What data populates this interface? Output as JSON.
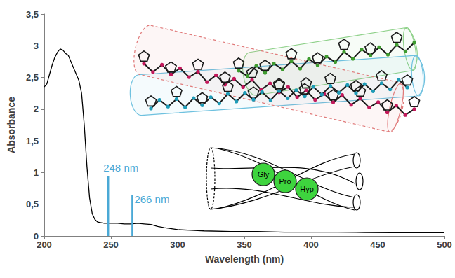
{
  "chart_data": {
    "type": "line",
    "x_label": "Wavelength (nm)",
    "y_label": "Absorbance",
    "color": "#000000",
    "x": [
      200,
      202,
      204,
      206,
      208,
      210,
      212,
      214,
      216,
      218,
      220,
      222,
      224,
      226,
      228,
      230,
      232,
      234,
      236,
      238,
      240,
      245,
      250,
      255,
      260,
      265,
      270,
      275,
      280,
      285,
      290,
      300,
      310,
      320,
      340,
      360,
      380,
      400,
      420,
      440,
      460,
      480,
      500
    ],
    "values": [
      2.35,
      2.4,
      2.55,
      2.7,
      2.82,
      2.9,
      2.95,
      2.93,
      2.88,
      2.85,
      2.75,
      2.65,
      2.55,
      2.45,
      2.25,
      1.75,
      1.1,
      0.6,
      0.35,
      0.26,
      0.22,
      0.2,
      0.2,
      0.2,
      0.19,
      0.19,
      0.2,
      0.19,
      0.18,
      0.15,
      0.13,
      0.1,
      0.09,
      0.08,
      0.07,
      0.07,
      0.06,
      0.06,
      0.06,
      0.055,
      0.05,
      0.05,
      0.05
    ],
    "xlim": [
      200,
      500
    ],
    "xticks": [
      200,
      250,
      300,
      350,
      400,
      450,
      500
    ],
    "ylim": [
      0,
      3.5
    ],
    "yticks": [
      0,
      {
        "value": 0.5,
        "label": "0,5"
      },
      1,
      {
        "value": 1.5,
        "label": "1,5"
      },
      2,
      {
        "value": 2.5,
        "label": "2,5"
      },
      3,
      {
        "value": 3.5,
        "label": "3,5"
      }
    ],
    "grid": false,
    "annotations": [
      {
        "x": 248,
        "y": 0.95,
        "label": "248 nm",
        "color": "#4aa9d6"
      },
      {
        "x": 266,
        "y": 0.65,
        "label": "266 nm",
        "color": "#4aa9d6"
      }
    ],
    "inset_labels": [
      "Gly",
      "Pro",
      "Hyp"
    ]
  }
}
